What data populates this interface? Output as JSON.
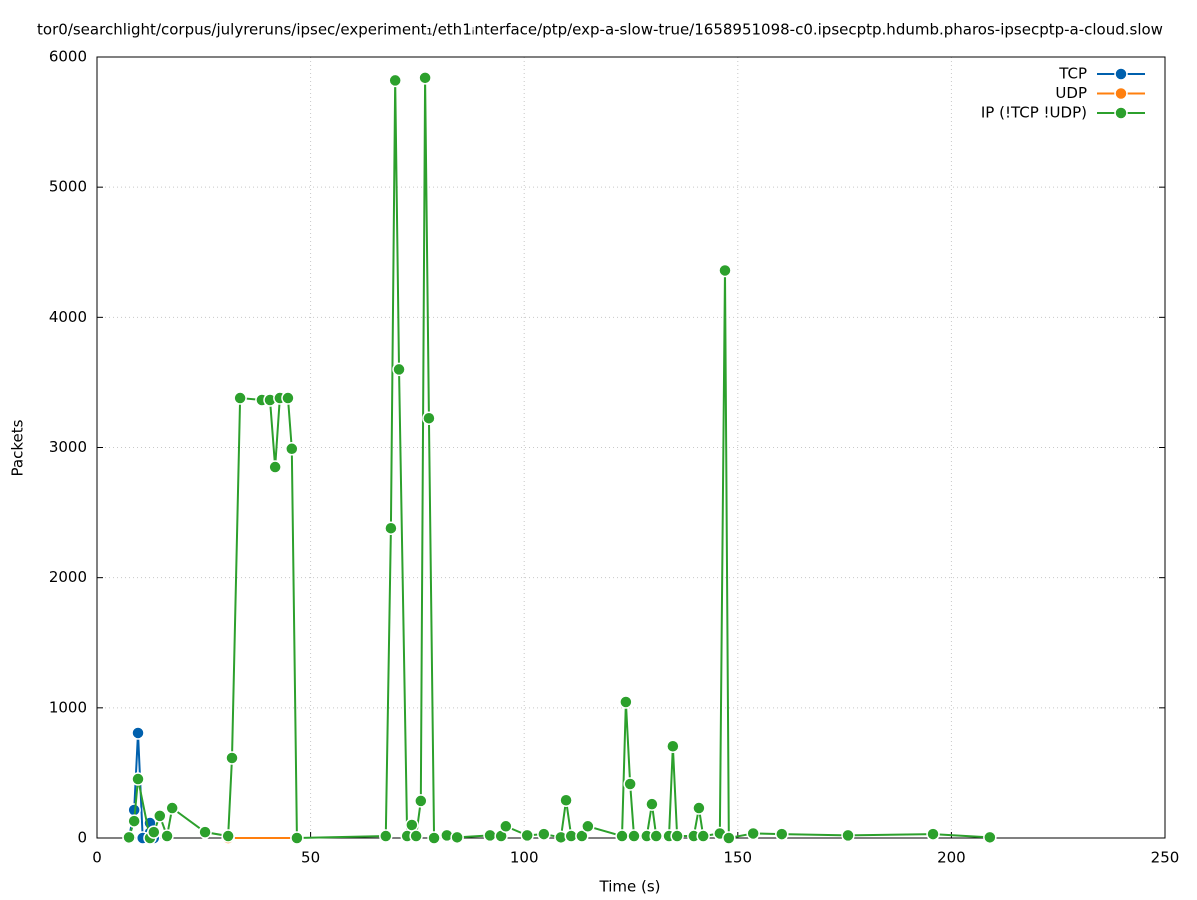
{
  "chart_data": {
    "type": "line",
    "title": "tor0/searchlight/corpus/julyreruns/ipsec/experiment₁/eth1ᵢnterface/ptp/exp-a-slow-true/1658951098-c0.ipsecptp.hdumb.pharos-ipsecptp-a-cloud.slow",
    "xlabel": "Time (s)",
    "ylabel": "Packets",
    "xlim": [
      0,
      250
    ],
    "xticks": [
      0,
      50,
      100,
      150,
      200,
      250
    ],
    "ylim": [
      0,
      6000
    ],
    "yticks": [
      0,
      1000,
      2000,
      3000,
      4000,
      5000,
      6000
    ],
    "grid": true,
    "legend": "top right",
    "series": [
      {
        "name": "TCP",
        "color": "#0060ad",
        "x": [
          7.5,
          8.7,
          9.6,
          10.7,
          12.4,
          13.3
        ],
        "values": [
          0,
          215,
          807,
          0,
          115,
          0
        ]
      },
      {
        "name": "UDP",
        "color": "#ff7f0e",
        "x": [
          30.7,
          46.8
        ],
        "values": [
          0,
          0
        ]
      },
      {
        "name": "IP (!TCP  !UDP)",
        "color": "#2ca02c",
        "x": [
          7.5,
          8.7,
          9.6,
          12.4,
          13.3,
          14.7,
          16.4,
          17.6,
          25.3,
          30.7,
          31.6,
          33.5,
          38.6,
          40.5,
          41.7,
          42.8,
          44.7,
          45.6,
          46.8,
          67.6,
          68.8,
          69.8,
          70.7,
          72.6,
          73.7,
          74.7,
          75.8,
          76.8,
          77.7,
          78.9,
          81.9,
          84.3,
          92,
          94.6,
          95.7,
          100.7,
          104.6,
          108.6,
          109.8,
          111,
          113.5,
          114.9,
          122.9,
          123.8,
          124.8,
          125.7,
          128.7,
          129.9,
          130.9,
          133.9,
          134.8,
          135.8,
          139.7,
          140.9,
          141.9,
          145.8,
          147,
          147.9,
          153.6,
          160.3,
          175.8,
          195.7,
          209
        ],
        "values": [
          5,
          130,
          453,
          0,
          45,
          170,
          15,
          230,
          45,
          15,
          615,
          3380,
          3365,
          3365,
          2850,
          3380,
          3380,
          2990,
          0,
          15,
          2380,
          5820,
          3600,
          15,
          100,
          15,
          285,
          5840,
          3225,
          0,
          20,
          5,
          20,
          15,
          90,
          20,
          30,
          5,
          290,
          15,
          15,
          90,
          15,
          1045,
          415,
          15,
          15,
          260,
          15,
          15,
          705,
          15,
          15,
          230,
          15,
          35,
          4360,
          0,
          35,
          30,
          20,
          30,
          5
        ]
      }
    ]
  }
}
